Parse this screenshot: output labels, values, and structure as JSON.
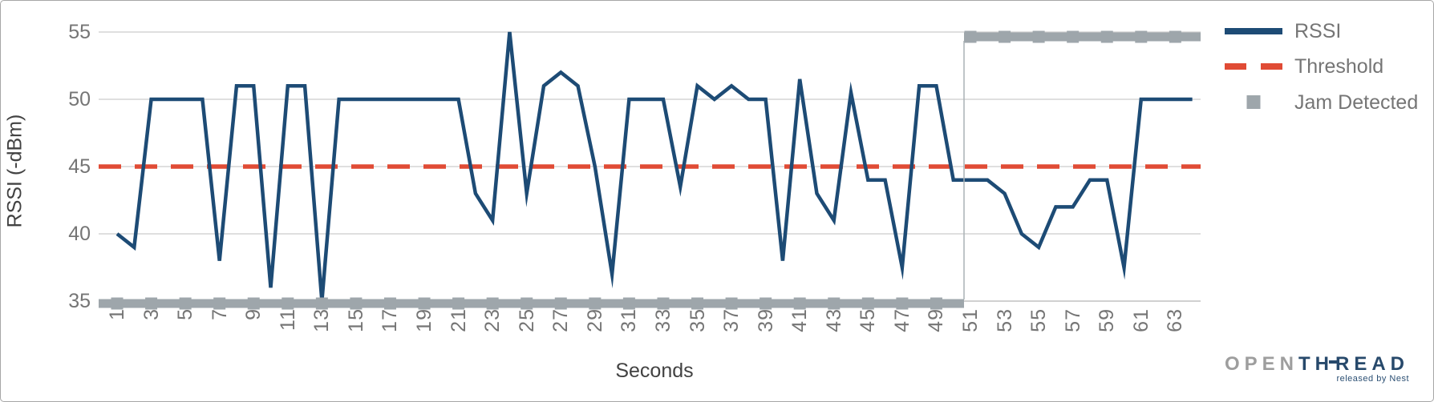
{
  "chart_data": {
    "type": "line",
    "title": "",
    "xlabel": "Seconds",
    "ylabel": "RSSI (-dBm)",
    "ylim": [
      35,
      55
    ],
    "grid": true,
    "legend_position": "right",
    "x": [
      1,
      2,
      3,
      4,
      5,
      6,
      7,
      8,
      9,
      10,
      11,
      12,
      13,
      14,
      15,
      16,
      17,
      18,
      19,
      20,
      21,
      22,
      23,
      24,
      25,
      26,
      27,
      28,
      29,
      30,
      31,
      32,
      33,
      34,
      35,
      36,
      37,
      38,
      39,
      40,
      41,
      42,
      43,
      44,
      45,
      46,
      47,
      48,
      49,
      50,
      51,
      52,
      53,
      54,
      55,
      56,
      57,
      58,
      59,
      60,
      61,
      62,
      63,
      64
    ],
    "series": [
      {
        "name": "RSSI",
        "type": "line",
        "color": "#1d4b75",
        "values": [
          40,
          39,
          50,
          50,
          50,
          50,
          38,
          51,
          51,
          36,
          51,
          51,
          35,
          50,
          50,
          50,
          50,
          50,
          50,
          50,
          50,
          43,
          41,
          55,
          43,
          51,
          52,
          51,
          45,
          37,
          50,
          50,
          50,
          43.5,
          51,
          50,
          51,
          50,
          50,
          38,
          51.5,
          43,
          41,
          50.5,
          44,
          44,
          37.5,
          51,
          51,
          44,
          44,
          44,
          43,
          40,
          39,
          42,
          42,
          44,
          44,
          37.5,
          50,
          50,
          50,
          50
        ]
      },
      {
        "name": "Threshold",
        "type": "horizontal-dashed-line",
        "color": "#e04b35",
        "value": 45
      },
      {
        "name": "Jam Detected",
        "type": "step-bar",
        "color": "#9ea6ab",
        "low_value": 35,
        "high_value": 55,
        "change_at_second": 51,
        "marker_seconds": [
          1,
          3,
          5,
          7,
          9,
          11,
          13,
          15,
          17,
          19,
          21,
          23,
          25,
          27,
          29,
          31,
          33,
          35,
          37,
          39,
          41,
          43,
          45,
          47,
          49,
          51,
          53,
          55,
          57,
          59,
          61,
          63
        ]
      }
    ],
    "y_tick_labels": [
      "35",
      "40",
      "45",
      "50",
      "55"
    ],
    "y_tick_values": [
      35,
      40,
      45,
      50,
      55
    ],
    "x_tick_labels": [
      "1",
      "3",
      "5",
      "7",
      "9",
      "11",
      "13",
      "15",
      "17",
      "19",
      "21",
      "23",
      "25",
      "27",
      "29",
      "31",
      "33",
      "35",
      "37",
      "39",
      "41",
      "43",
      "45",
      "47",
      "49",
      "51",
      "53",
      "55",
      "57",
      "59",
      "61",
      "63"
    ],
    "x_tick_values": [
      1,
      3,
      5,
      7,
      9,
      11,
      13,
      15,
      17,
      19,
      21,
      23,
      25,
      27,
      29,
      31,
      33,
      35,
      37,
      39,
      41,
      43,
      45,
      47,
      49,
      51,
      53,
      55,
      57,
      59,
      61,
      63
    ]
  },
  "axes": {
    "x_title": "Seconds",
    "y_title": "RSSI (-dBm)"
  },
  "legend": {
    "items": [
      {
        "label": "RSSI",
        "swatch": "solid-line",
        "color": "#1d4b75"
      },
      {
        "label": "Threshold",
        "swatch": "dashed-line",
        "color": "#e04b35"
      },
      {
        "label": "Jam Detected",
        "swatch": "square",
        "color": "#9ea6ab"
      }
    ]
  },
  "branding": {
    "logo_open": "OPEN",
    "logo_th": "TH",
    "logo_read": "READ",
    "tagline": "released by Nest"
  },
  "colors": {
    "rssi_line": "#1d4b75",
    "threshold_line": "#e04b35",
    "jam_bar": "#9ea6ab",
    "jam_connector": "#aab2b6",
    "gridline": "#cccccc",
    "axis_line": "#b3b3b3",
    "tick_text": "#757575",
    "title_text": "#424242"
  }
}
